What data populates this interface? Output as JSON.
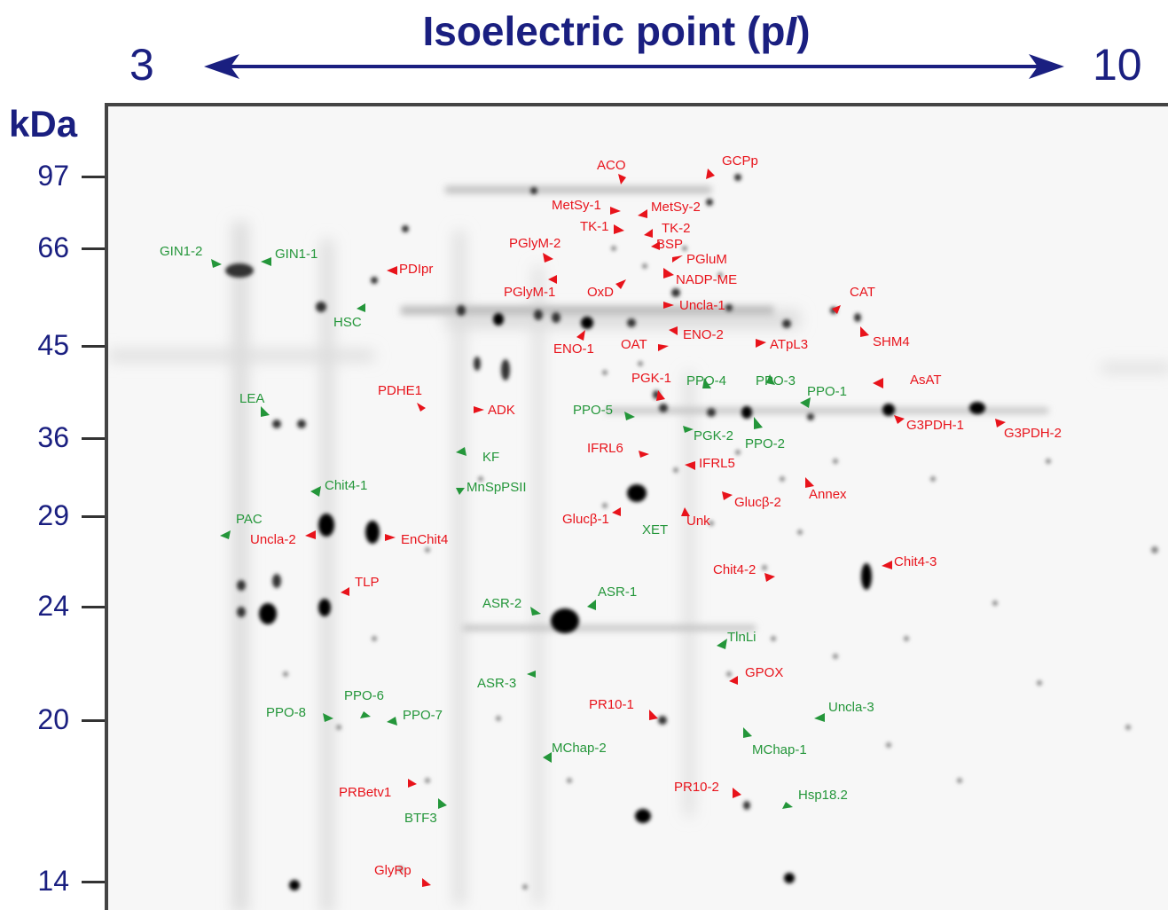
{
  "header": {
    "title_main": "Isoelectric point (p",
    "title_italic": "I",
    "title_end": ")",
    "pi_min": "3",
    "pi_max": "10"
  },
  "mw_axis": {
    "unit": "kDa",
    "ticks": [
      "97",
      "66",
      "45",
      "36",
      "29",
      "24",
      "20",
      "14"
    ]
  },
  "colors": {
    "axis": "#1a1f80",
    "red_label": "#e8131b",
    "green_label": "#24963a"
  },
  "labels": {
    "aco": "ACO",
    "gcpp": "GCPp",
    "metsy1": "MetSy-1",
    "metsy2": "MetSy-2",
    "tk1": "TK-1",
    "tk2": "TK-2",
    "bsp": "BSP",
    "pglum": "PGluM",
    "pglym2": "PGlyM-2",
    "pglym1": "PGlyM-1",
    "oxd": "OxD",
    "nadpme": "NADP-ME",
    "uncla1": "Uncla-1",
    "gin12": "GIN1-2",
    "gin11": "GIN1-1",
    "pdipr": "PDIpr",
    "hsc": "HSC",
    "cat": "CAT",
    "shm4": "SHM4",
    "eno1": "ENO-1",
    "oat": "OAT",
    "eno2": "ENO-2",
    "atpl3": "ATpL3",
    "lea": "LEA",
    "pdhe1": "PDHE1",
    "adk": "ADK",
    "pgk1": "PGK-1",
    "ppo4": "PPO-4",
    "ppo3": "PPO-3",
    "ppo1": "PPO-1",
    "asat": "AsAT",
    "ppo5": "PPO-5",
    "pgk2": "PGK-2",
    "ppo2": "PPO-2",
    "g3pdh1": "G3PDH-1",
    "g3pdh2": "G3PDH-2",
    "ifrl6": "IFRL6",
    "kf": "KF",
    "ifrl5": "IFRL5",
    "chit41": "Chit4-1",
    "mnsppsii": "MnSpPSII",
    "annex": "Annex",
    "glucb2": "Glucβ-2",
    "glucb1": "Glucβ-1",
    "unk": "Unk",
    "pac": "PAC",
    "uncla2": "Uncla-2",
    "enchit4": "EnChit4",
    "xet": "XET",
    "chit43": "Chit4-3",
    "chit42": "Chit4-2",
    "tlp": "TLP",
    "asr2": "ASR-2",
    "asr1": "ASR-1",
    "tlnli": "TlnLi",
    "gpox": "GPOX",
    "asr3": "ASR-3",
    "ppo6": "PPO-6",
    "ppo8": "PPO-8",
    "ppo7": "PPO-7",
    "uncla3": "Uncla-3",
    "pr101": "PR10-1",
    "mchap1": "MChap-1",
    "mchap2": "MChap-2",
    "prbetv1": "PRBetv1",
    "pr102": "PR10-2",
    "hsp182": "Hsp18.2",
    "btf3": "BTF3",
    "glyrp": "GlyRp"
  }
}
